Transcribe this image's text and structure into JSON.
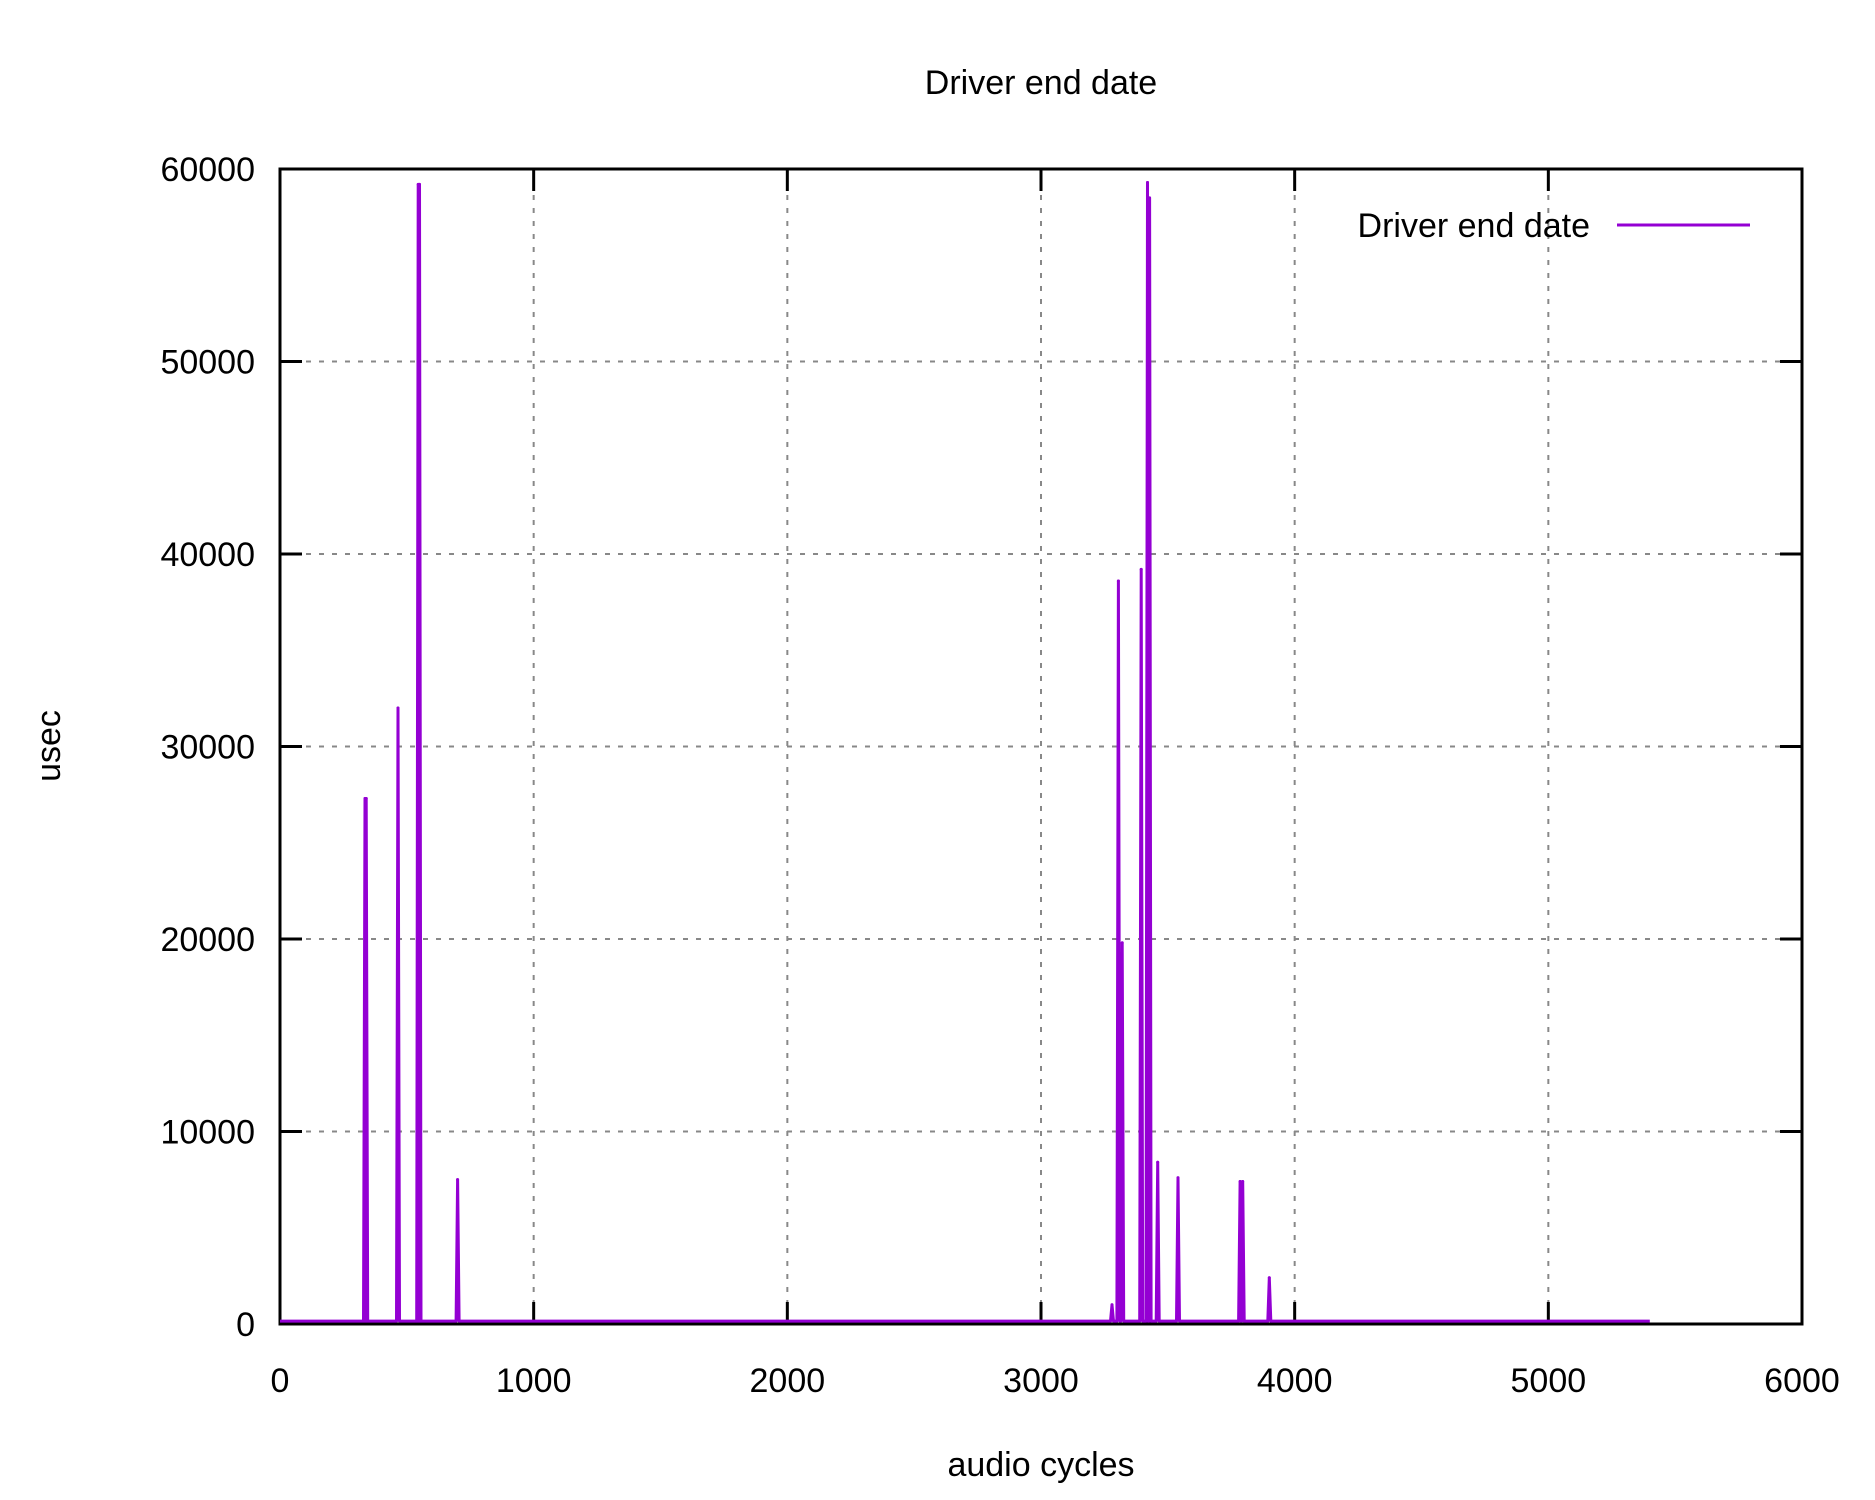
{
  "chart_data": {
    "type": "line",
    "title": "Driver end date",
    "xlabel": "audio cycles",
    "ylabel": "usec",
    "xlim": [
      0,
      6000
    ],
    "ylim": [
      0,
      60000
    ],
    "xticks": [
      0,
      1000,
      2000,
      3000,
      4000,
      5000,
      6000
    ],
    "yticks": [
      0,
      10000,
      20000,
      30000,
      40000,
      50000,
      60000
    ],
    "xtick_labels": [
      "0",
      "1000",
      "2000",
      "3000",
      "4000",
      "5000",
      "6000"
    ],
    "ytick_labels": [
      "0",
      "10000",
      "20000",
      "30000",
      "40000",
      "50000",
      "60000"
    ],
    "grid": true,
    "legend_position": "top-right",
    "series": [
      {
        "name": "Driver end date",
        "color": "#9400d3",
        "x_range": [
          0,
          5400
        ],
        "baseline": 150,
        "spikes": [
          {
            "x": 335,
            "y": 27300
          },
          {
            "x": 340,
            "y": 27300
          },
          {
            "x": 465,
            "y": 32000
          },
          {
            "x": 545,
            "y": 59200
          },
          {
            "x": 550,
            "y": 59200
          },
          {
            "x": 700,
            "y": 7500
          },
          {
            "x": 3280,
            "y": 1000
          },
          {
            "x": 3305,
            "y": 38600
          },
          {
            "x": 3320,
            "y": 19800
          },
          {
            "x": 3395,
            "y": 39200
          },
          {
            "x": 3420,
            "y": 59300
          },
          {
            "x": 3428,
            "y": 58500
          },
          {
            "x": 3460,
            "y": 8400
          },
          {
            "x": 3540,
            "y": 7600
          },
          {
            "x": 3785,
            "y": 7400
          },
          {
            "x": 3795,
            "y": 7400
          },
          {
            "x": 3900,
            "y": 2400
          }
        ]
      }
    ]
  }
}
